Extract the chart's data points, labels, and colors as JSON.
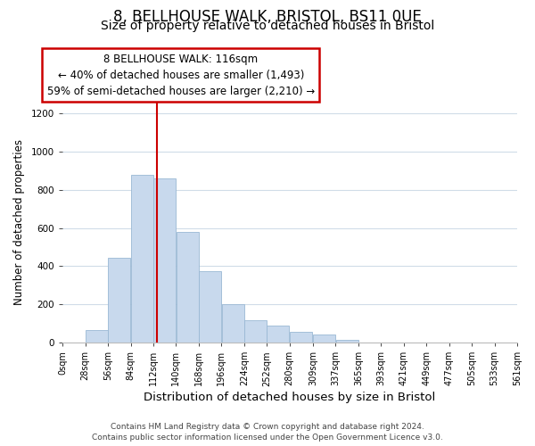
{
  "title": "8, BELLHOUSE WALK, BRISTOL, BS11 0UE",
  "subtitle": "Size of property relative to detached houses in Bristol",
  "xlabel": "Distribution of detached houses by size in Bristol",
  "ylabel": "Number of detached properties",
  "bar_color": "#c8d9ed",
  "bar_edge_color": "#9ab8d4",
  "bins_left": [
    0,
    28,
    56,
    84,
    112,
    140,
    168,
    196,
    224,
    252,
    280,
    309,
    337,
    365,
    393,
    421,
    449,
    477,
    505,
    533
  ],
  "bin_width": 28,
  "bar_heights": [
    0,
    65,
    445,
    878,
    860,
    578,
    375,
    200,
    115,
    88,
    55,
    42,
    15,
    0,
    0,
    0,
    0,
    0,
    0,
    0
  ],
  "tick_labels": [
    "0sqm",
    "28sqm",
    "56sqm",
    "84sqm",
    "112sqm",
    "140sqm",
    "168sqm",
    "196sqm",
    "224sqm",
    "252sqm",
    "280sqm",
    "309sqm",
    "337sqm",
    "365sqm",
    "393sqm",
    "421sqm",
    "449sqm",
    "477sqm",
    "505sqm",
    "533sqm",
    "561sqm"
  ],
  "tick_positions": [
    0,
    28,
    56,
    84,
    112,
    140,
    168,
    196,
    224,
    252,
    280,
    309,
    337,
    365,
    393,
    421,
    449,
    477,
    505,
    533,
    561
  ],
  "vline_x": 116,
  "vline_color": "#cc0000",
  "annotation_line1": "8 BELLHOUSE WALK: 116sqm",
  "annotation_line2": "← 40% of detached houses are smaller (1,493)",
  "annotation_line3": "59% of semi-detached houses are larger (2,210) →",
  "ylim": [
    0,
    1260
  ],
  "xlim": [
    0,
    561
  ],
  "footer_line1": "Contains HM Land Registry data © Crown copyright and database right 2024.",
  "footer_line2": "Contains public sector information licensed under the Open Government Licence v3.0.",
  "background_color": "#ffffff",
  "grid_color": "#d0dce8",
  "title_fontsize": 12,
  "subtitle_fontsize": 10,
  "xlabel_fontsize": 9.5,
  "ylabel_fontsize": 8.5,
  "tick_fontsize": 7,
  "annotation_fontsize": 8.5,
  "footer_fontsize": 6.5
}
